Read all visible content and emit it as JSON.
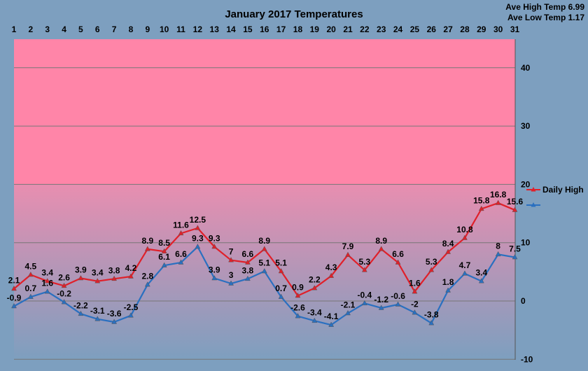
{
  "chart_data": {
    "type": "line",
    "title": "January 2017 Temperatures",
    "annotations": {
      "ave_high": "Ave High Temp 6.99",
      "ave_low": "Ave Low Temp 1.17"
    },
    "categories": [
      "1",
      "2",
      "3",
      "4",
      "5",
      "6",
      "7",
      "8",
      "9",
      "10",
      "11",
      "12",
      "13",
      "14",
      "15",
      "16",
      "17",
      "18",
      "19",
      "20",
      "21",
      "22",
      "23",
      "24",
      "25",
      "26",
      "27",
      "28",
      "29",
      "30",
      "31"
    ],
    "series": [
      {
        "name": "Daily High",
        "color": "#e0202a",
        "values": [
          2.1,
          4.5,
          3.4,
          2.6,
          3.9,
          3.4,
          3.8,
          4.2,
          8.9,
          8.5,
          11.6,
          12.5,
          9.3,
          7,
          6.6,
          8.9,
          5.1,
          0.9,
          2.2,
          4.3,
          7.9,
          5.3,
          8.9,
          6.6,
          1.6,
          5.3,
          8.4,
          10.8,
          15.8,
          16.8,
          15.6
        ]
      },
      {
        "name": "",
        "color": "#2a70c0",
        "values": [
          -0.9,
          0.7,
          1.6,
          -0.2,
          -2.2,
          -3.1,
          -3.6,
          -2.5,
          2.8,
          6.1,
          6.6,
          9.3,
          3.9,
          3,
          3.8,
          5.1,
          0.7,
          -2.6,
          -3.4,
          -4.1,
          -2.1,
          -0.4,
          -1.2,
          -0.6,
          -2,
          -3.8,
          1.8,
          4.7,
          3.4,
          8,
          7.5
        ]
      }
    ],
    "ylim": [
      -10,
      45
    ],
    "yticks": [
      -10,
      0,
      10,
      20,
      30,
      40
    ],
    "grid": true,
    "legend": "right",
    "bands": [
      {
        "from": 20,
        "to": 45,
        "color": "#ff85a8"
      },
      {
        "from": -10,
        "to": 20,
        "gradient_top": "#e88eb0",
        "gradient_bottom": "#7d9fbf"
      }
    ]
  }
}
